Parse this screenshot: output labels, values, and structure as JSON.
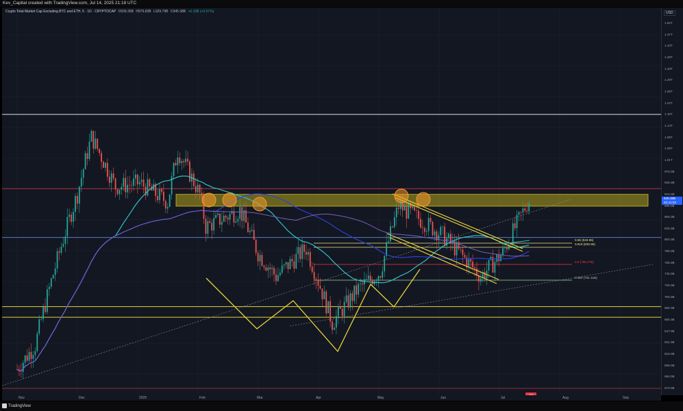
{
  "header": {
    "credit": "Kev_Capital created with TradingView.com, Jul 14, 2025 21:18 UTC"
  },
  "legend": {
    "title": "Crypto Total Market Cap Excluding BTC and ETH, 5 · 1D · CRYPTOCAP",
    "open": "O939.36B",
    "high": "H976.83B",
    "low": "L929.79B",
    "close": "C945.38B",
    "change": "+6.33B (+0.67%)"
  },
  "price_axis": {
    "currency": "USD",
    "ticks": [
      "1.52T",
      "1.47T",
      "1.43T",
      "1.38T",
      "1.33T",
      "1.29T",
      "1.25T",
      "1.22T",
      "1.18T",
      "1.14T",
      "1.09T",
      "1.05T",
      "1.01T",
      "975.0B",
      "935.0B",
      "915.0B",
      "885.0B",
      "855.0B",
      "825.0B",
      "800.0B",
      "785.0B",
      "765.0B",
      "745.0B",
      "725.0B",
      "705.0B",
      "685.0B",
      "665.0B",
      "647.0B",
      "631.0B",
      "615.0B",
      "599.0B",
      "584.0B",
      "570.0B"
    ],
    "current_price": "945.38B",
    "countdown": "02:41:02"
  },
  "time_axis": {
    "labels": [
      "Nov",
      "Dec",
      "2025",
      "Feb",
      "Mar",
      "Apr",
      "May",
      "Jun",
      "Jul",
      "Aug",
      "Sep"
    ]
  },
  "fib_levels": [
    {
      "label": "0.65 (840.95)",
      "color": "#f0e68c"
    },
    {
      "label": "0.618 (830.95)",
      "color": "#f0e68c"
    },
    {
      "label": "0.5 (795.27B)",
      "color": "#f23645"
    },
    {
      "label": "0.382 (761.11B)",
      "color": "#a5d6a7"
    }
  ],
  "marker": "323",
  "footer": {
    "brand": "TradingView"
  },
  "chart_data": {
    "type": "candlestick",
    "title": "Crypto Total Market Cap Excluding BTC and ETH, 5 · 1D · CRYPTOCAP",
    "x_range": [
      "Nov 2024",
      "Sep 2025"
    ],
    "y_range_billions": [
      570,
      1520
    ],
    "close_path_billions": [
      {
        "x": "Nov 1",
        "y": 600
      },
      {
        "x": "Nov 10",
        "y": 640
      },
      {
        "x": "Nov 20",
        "y": 790
      },
      {
        "x": "Dec 1",
        "y": 960
      },
      {
        "x": "Dec 8",
        "y": 1120
      },
      {
        "x": "Dec 20",
        "y": 980
      },
      {
        "x": "Jan 1",
        "y": 990
      },
      {
        "x": "Jan 15",
        "y": 940
      },
      {
        "x": "Jan 20",
        "y": 1080
      },
      {
        "x": "Jan 31",
        "y": 960
      },
      {
        "x": "Feb 3",
        "y": 880
      },
      {
        "x": "Feb 20",
        "y": 920
      },
      {
        "x": "Mar 1",
        "y": 820
      },
      {
        "x": "Mar 10",
        "y": 770
      },
      {
        "x": "Mar 25",
        "y": 830
      },
      {
        "x": "Apr 7",
        "y": 680
      },
      {
        "x": "Apr 20",
        "y": 745
      },
      {
        "x": "May 1",
        "y": 780
      },
      {
        "x": "May 10",
        "y": 930
      },
      {
        "x": "May 20",
        "y": 900
      },
      {
        "x": "Jun 1",
        "y": 860
      },
      {
        "x": "Jun 20",
        "y": 770
      },
      {
        "x": "Jul 1",
        "y": 820
      },
      {
        "x": "Jul 14",
        "y": 945
      }
    ],
    "horizontal_levels_billions": [
      1190,
      975,
      855,
      710,
      690,
      570
    ],
    "resistance_zone_billions": [
      930,
      960
    ],
    "moving_averages": [
      "cyan",
      "blue",
      "purple"
    ],
    "grid": true
  },
  "colors": {
    "background": "#131722",
    "up": "#26a69a",
    "down": "#ef5350",
    "zone": "#d4c11e",
    "pattern": "#e8d33a"
  }
}
